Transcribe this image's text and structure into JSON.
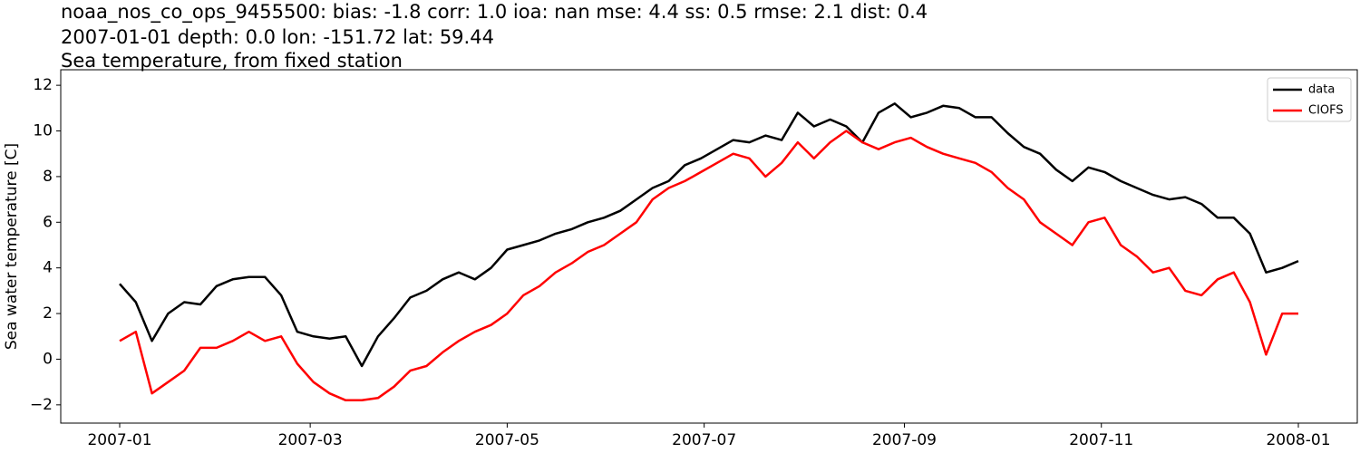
{
  "chart_data": {
    "type": "line",
    "title_lines": [
      "noaa_nos_co_ops_9455500: bias: -1.8  corr: 1.0  ioa: nan  mse: 4.4  ss: 0.5  rmse: 2.1  dist: 0.4",
      "2007-01-01 depth: 0.0 lon: -151.72 lat: 59.44",
      "Sea temperature, from fixed station"
    ],
    "ylabel": "Sea water temperature [C]",
    "x": [
      0,
      5,
      10,
      15,
      20,
      25,
      30,
      35,
      40,
      45,
      50,
      55,
      60,
      65,
      70,
      75,
      80,
      85,
      90,
      95,
      100,
      105,
      110,
      115,
      120,
      125,
      130,
      135,
      140,
      145,
      150,
      155,
      160,
      165,
      170,
      175,
      180,
      185,
      190,
      195,
      200,
      205,
      210,
      215,
      220,
      225,
      230,
      235,
      240,
      245,
      250,
      255,
      260,
      265,
      270,
      275,
      280,
      285,
      290,
      295,
      300,
      305,
      310,
      315,
      320,
      325,
      330,
      335,
      340,
      345,
      350,
      355,
      360,
      365
    ],
    "series": [
      {
        "name": "data",
        "color": "#000000",
        "values": [
          3.3,
          2.5,
          0.8,
          2.0,
          2.5,
          2.4,
          3.2,
          3.5,
          3.6,
          3.6,
          2.8,
          1.2,
          1.0,
          0.9,
          1.0,
          -0.3,
          1.0,
          1.8,
          2.7,
          3.0,
          3.5,
          3.8,
          3.5,
          4.0,
          4.8,
          5.0,
          5.2,
          5.5,
          5.7,
          6.0,
          6.2,
          6.5,
          7.0,
          7.5,
          7.8,
          8.5,
          8.8,
          9.2,
          9.6,
          9.5,
          9.8,
          9.6,
          10.8,
          10.2,
          10.5,
          10.2,
          9.5,
          10.8,
          11.2,
          10.6,
          10.8,
          11.1,
          11.0,
          10.6,
          10.6,
          9.9,
          9.3,
          9.0,
          8.3,
          7.8,
          8.4,
          8.2,
          7.8,
          7.5,
          7.2,
          7.0,
          7.1,
          6.8,
          6.2,
          6.2,
          5.5,
          3.8,
          4.0,
          4.3
        ]
      },
      {
        "name": "CIOFS",
        "color": "#ff0000",
        "values": [
          0.8,
          1.2,
          -1.5,
          -1.0,
          -0.5,
          0.5,
          0.5,
          0.8,
          1.2,
          0.8,
          1.0,
          -0.2,
          -1.0,
          -1.5,
          -1.8,
          -1.8,
          -1.7,
          -1.2,
          -0.5,
          -0.3,
          0.3,
          0.8,
          1.2,
          1.5,
          2.0,
          2.8,
          3.2,
          3.8,
          4.2,
          4.7,
          5.0,
          5.5,
          6.0,
          7.0,
          7.5,
          7.8,
          8.2,
          8.6,
          9.0,
          8.8,
          8.0,
          8.6,
          9.5,
          8.8,
          9.5,
          10.0,
          9.5,
          9.2,
          9.5,
          9.7,
          9.3,
          9.0,
          8.8,
          8.6,
          8.2,
          7.5,
          7.0,
          6.0,
          5.5,
          5.0,
          6.0,
          6.2,
          5.0,
          4.5,
          3.8,
          4.0,
          3.0,
          2.8,
          3.5,
          3.8,
          2.5,
          0.2,
          2.0,
          2.0
        ]
      }
    ],
    "xlim": [
      -18.25,
      383.25
    ],
    "xticks": [
      {
        "value": 0,
        "label": "2007-01"
      },
      {
        "value": 59,
        "label": "2007-03"
      },
      {
        "value": 120,
        "label": "2007-05"
      },
      {
        "value": 181,
        "label": "2007-07"
      },
      {
        "value": 243,
        "label": "2007-09"
      },
      {
        "value": 304,
        "label": "2007-11"
      },
      {
        "value": 365,
        "label": "2008-01"
      }
    ],
    "ylim": [
      -2.8,
      12.68
    ],
    "yticks": [
      {
        "value": -2,
        "label": "−2"
      },
      0,
      2,
      4,
      6,
      8,
      10,
      12
    ],
    "grid": false,
    "legend": "upper right"
  }
}
